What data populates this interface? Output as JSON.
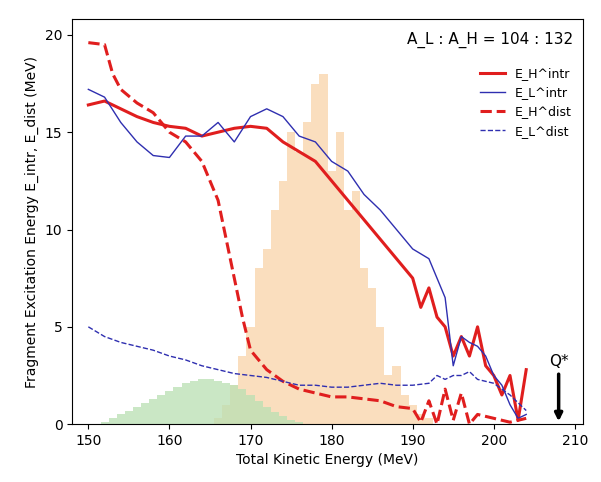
{
  "chart_data": {
    "type": "line",
    "x_label": "Total Kinetic Energy (MeV)",
    "y_label": "Fragment Excitation Energy E_intr, E_dist (MeV)",
    "xlim": [
      148,
      211
    ],
    "xticks": [
      150,
      160,
      170,
      180,
      190,
      200,
      210
    ],
    "ylim": [
      0,
      20.8
    ],
    "yticks": [
      0,
      5,
      10,
      15,
      20
    ],
    "legend": "upper right",
    "annotations": [
      {
        "text": "A_L : A_H = 104 : 132"
      },
      {
        "text": "Q*",
        "x": 208,
        "y": 0
      }
    ],
    "series": [
      {
        "type": "histogram",
        "color": "#f9d3a8",
        "bins": [
          165.5,
          166.5,
          167.5,
          168.5,
          169.5,
          170.5,
          171.5,
          172.5,
          173.5,
          174.5,
          175.5,
          176.5,
          177.5,
          178.5,
          179.5,
          180.5,
          181.5,
          182.5,
          183.5,
          184.5,
          185.5,
          186.5,
          187.5,
          188.5,
          189.5,
          190.5,
          191.5,
          192.5
        ],
        "values": [
          0.3,
          1,
          2,
          3.5,
          5,
          8,
          9,
          11,
          12.5,
          15,
          14,
          15.5,
          17.5,
          18,
          13,
          15,
          11,
          12,
          8,
          7,
          5,
          2.5,
          3,
          1.5,
          1,
          0.5,
          0.3
        ]
      },
      {
        "type": "histogram",
        "color": "#b9e0b2",
        "bins": [
          151.5,
          152.5,
          153.5,
          154.5,
          155.5,
          156.5,
          157.5,
          158.5,
          159.5,
          160.5,
          161.5,
          162.5,
          163.5,
          164.5,
          165.5,
          166.5,
          167.5,
          168.5,
          169.5,
          170.5,
          171.5,
          172.5,
          173.5,
          174.5,
          175.5,
          176.5
        ],
        "values": [
          0.1,
          0.3,
          0.5,
          0.7,
          0.9,
          1.1,
          1.3,
          1.5,
          1.7,
          1.9,
          2.1,
          2.2,
          2.3,
          2.3,
          2.2,
          2.1,
          2.0,
          1.8,
          1.5,
          1.2,
          0.9,
          0.6,
          0.4,
          0.2,
          0.1
        ]
      },
      {
        "name": "E_H^intr",
        "color": "#e01e1e",
        "line_style": "solid",
        "x": [
          150,
          152,
          154,
          156,
          158,
          160,
          162,
          164,
          166,
          168,
          170,
          172,
          174,
          176,
          178,
          180,
          182,
          184,
          186,
          188,
          190,
          191,
          192,
          193,
          194,
          195,
          196,
          197,
          198,
          199,
          200,
          201,
          202,
          203,
          204
        ],
        "values": [
          16.4,
          16.6,
          16.2,
          15.8,
          15.5,
          15.3,
          15.2,
          14.8,
          15.0,
          15.2,
          15.3,
          15.2,
          14.5,
          14.0,
          13.5,
          12.5,
          11.5,
          10.5,
          9.5,
          8.5,
          7.5,
          6.0,
          7.0,
          5.5,
          5.0,
          3.5,
          4.5,
          3.5,
          5.0,
          3.0,
          2.5,
          1.5,
          2.5,
          0.2,
          2.8
        ]
      },
      {
        "name": "E_L^intr",
        "color": "#2f2fb0",
        "line_style": "solid",
        "x": [
          150,
          152,
          154,
          156,
          158,
          160,
          162,
          164,
          166,
          168,
          170,
          172,
          174,
          176,
          178,
          180,
          182,
          184,
          186,
          188,
          190,
          192,
          193,
          194,
          195,
          196,
          197,
          198,
          199,
          200,
          201,
          202,
          203,
          204
        ],
        "values": [
          17.2,
          16.8,
          15.5,
          14.5,
          13.8,
          13.7,
          14.8,
          14.8,
          15.5,
          14.5,
          15.8,
          16.2,
          15.8,
          14.8,
          14.5,
          13.5,
          13.0,
          11.8,
          11.0,
          10.0,
          9.0,
          8.5,
          7.5,
          6.5,
          3.0,
          4.5,
          4.2,
          4.0,
          3.5,
          2.5,
          2.0,
          1.0,
          0.3,
          0.5
        ]
      },
      {
        "name": "E_H^dist",
        "color": "#e01e1e",
        "line_style": "dashed",
        "x": [
          150,
          152,
          153,
          154,
          156,
          158,
          160,
          162,
          164,
          166,
          168,
          169,
          170,
          172,
          174,
          176,
          178,
          180,
          182,
          184,
          186,
          188,
          190,
          191,
          192,
          193,
          194,
          195,
          196,
          197,
          198,
          200,
          202,
          204
        ],
        "values": [
          19.6,
          19.5,
          18.0,
          17.2,
          16.5,
          16.0,
          15.0,
          14.5,
          13.5,
          11.5,
          7.5,
          5.5,
          3.8,
          2.8,
          2.2,
          1.8,
          1.6,
          1.4,
          1.4,
          1.3,
          1.2,
          0.9,
          0.8,
          0.1,
          1.2,
          0.0,
          1.8,
          0.2,
          1.6,
          0.0,
          0.5,
          0.3,
          0.1,
          0.3
        ]
      },
      {
        "name": "E_L^dist",
        "color": "#2f2fb0",
        "line_style": "dashed",
        "x": [
          150,
          152,
          154,
          156,
          158,
          160,
          162,
          164,
          166,
          168,
          170,
          172,
          174,
          176,
          178,
          180,
          182,
          184,
          186,
          188,
          190,
          192,
          193,
          194,
          195,
          196,
          197,
          198,
          200,
          202,
          204
        ],
        "values": [
          5.0,
          4.5,
          4.2,
          4.0,
          3.8,
          3.5,
          3.3,
          3.0,
          2.8,
          2.6,
          2.5,
          2.4,
          2.2,
          2.0,
          2.0,
          1.9,
          1.9,
          2.0,
          2.1,
          2.0,
          2.0,
          2.1,
          2.5,
          2.3,
          2.5,
          2.5,
          2.7,
          2.3,
          2.1,
          1.5,
          0.7
        ]
      }
    ]
  }
}
